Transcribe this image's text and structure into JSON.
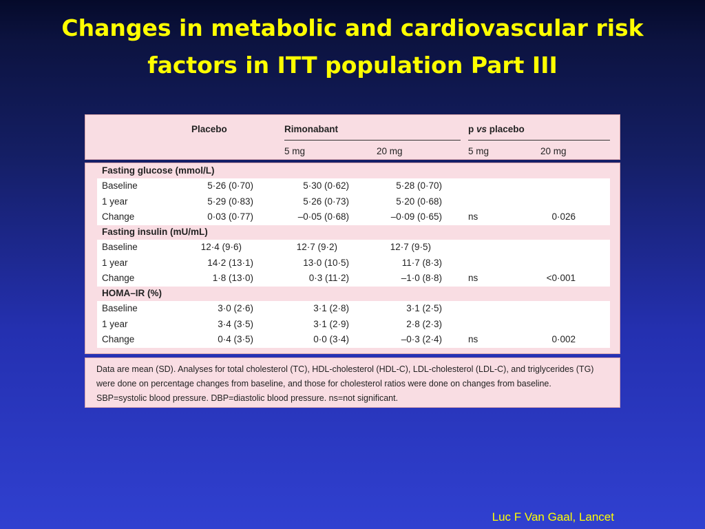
{
  "title": {
    "line1": "Changes in metabolic and cardiovascular risk",
    "line2": "factors in ITT population Part III"
  },
  "table": {
    "header": {
      "placebo": "Placebo",
      "rimonabant": "Rimonabant",
      "p_vs_placebo_prefix": "p ",
      "p_vs_placebo_vs": "vs",
      "p_vs_placebo_suffix": " placebo",
      "r_5mg": "5 mg",
      "r_20mg": "20 mg",
      "p_5mg": "5 mg",
      "p_20mg": "20 mg"
    },
    "sections": [
      {
        "name": "Fasting glucose (mmol/L)",
        "rows": [
          {
            "label": "Baseline",
            "placebo": "5·26 (0·70)",
            "r5": "5·30 (0·62)",
            "r20": "5·28 (0·70)",
            "p5": "",
            "p20": ""
          },
          {
            "label": "1 year",
            "placebo": "5·29 (0·83)",
            "r5": "5·26 (0·73)",
            "r20": "5·20 (0·68)",
            "p5": "",
            "p20": ""
          },
          {
            "label": "Change",
            "placebo": "0·03 (0·77)",
            "r5": "–0·05 (0·68)",
            "r20": "–0·09 (0·65)",
            "p5": "ns",
            "p20": "0·026"
          }
        ]
      },
      {
        "name": "Fasting insulin (mU/mL)",
        "rows": [
          {
            "label": "Baseline",
            "placebo": "12·4 (9·6)",
            "r5": "12·7 (9·2)",
            "r20": "12·7 (9·5)",
            "p5": "",
            "p20": ""
          },
          {
            "label": "1 year",
            "placebo": "14·2 (13·1)",
            "r5": "13·0 (10·5)",
            "r20": "11·7 (8·3)",
            "p5": "",
            "p20": ""
          },
          {
            "label": "Change",
            "placebo": "1·8 (13·0)",
            "r5": "0·3 (11·2)",
            "r20": "–1·0 (8·8)",
            "p5": "ns",
            "p20": "<0·001"
          }
        ]
      },
      {
        "name": "HOMA–IR (%)",
        "rows": [
          {
            "label": "Baseline",
            "placebo": "3·0 (2·6)",
            "r5": "3·1 (2·8)",
            "r20": "3·1 (2·5)",
            "p5": "",
            "p20": ""
          },
          {
            "label": "1 year",
            "placebo": "3·4 (3·5)",
            "r5": "3·1 (2·9)",
            "r20": "2·8 (2·3)",
            "p5": "",
            "p20": ""
          },
          {
            "label": "Change",
            "placebo": "0·4 (3·5)",
            "r5": "0·0 (3·4)",
            "r20": "–0·3 (2·4)",
            "p5": "ns",
            "p20": "0·002"
          }
        ]
      }
    ],
    "footnote": [
      "Data are mean (SD). Analyses for total cholesterol (TC), HDL-cholesterol (HDL-C), LDL-cholesterol (LDL-C), and triglycerides (TG)",
      "were done on percentage changes from baseline, and those for cholesterol ratios were done on changes from baseline.",
      "SBP=systolic blood pressure. DBP=diastolic blood pressure. ns=not significant."
    ]
  },
  "credit": "Luc F Van Gaal, Lancet",
  "colors": {
    "title": "#ffff00",
    "panel": "#f9dde3",
    "background_top": "#050a2a",
    "background_bottom": "#3040d0"
  }
}
